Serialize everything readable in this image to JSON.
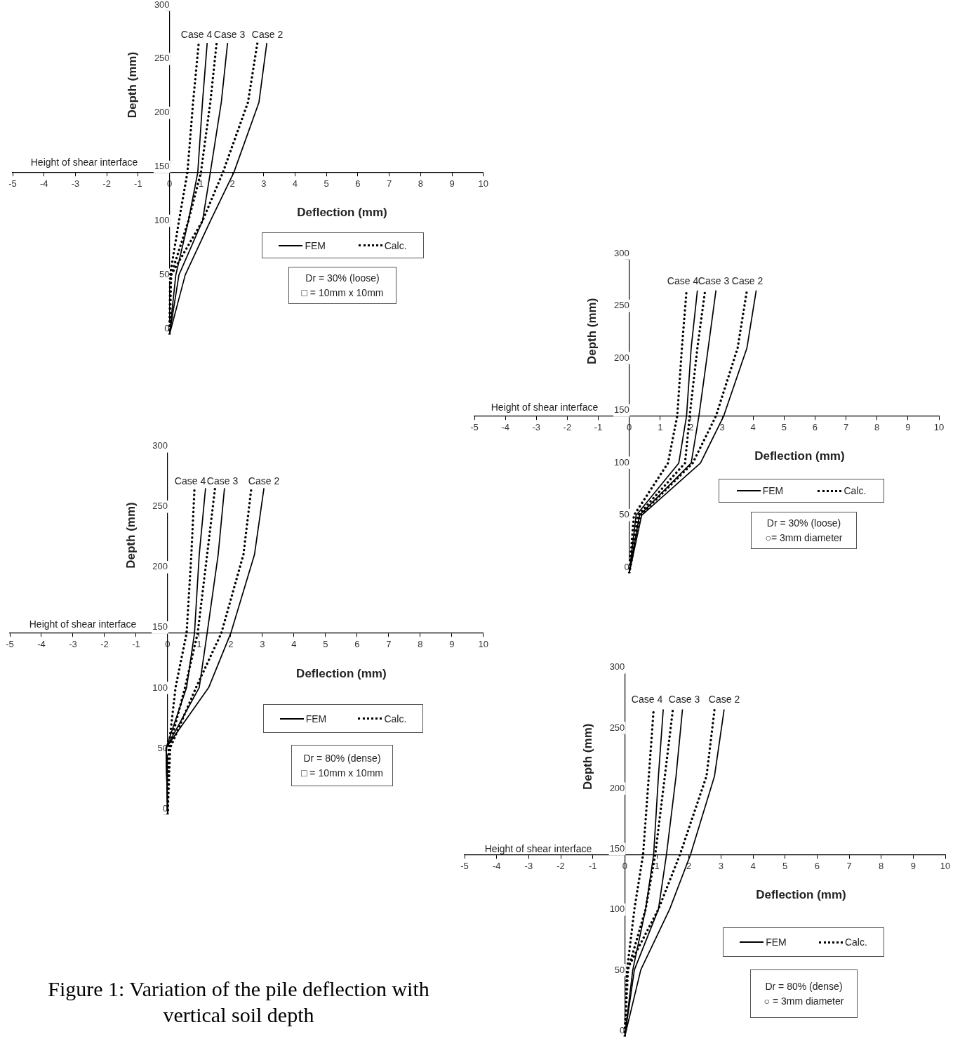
{
  "chart_data": [
    {
      "type": "line",
      "xlabel": "Deflection (mm)",
      "ylabel": "Depth (mm)",
      "xlim": [
        -5,
        10
      ],
      "ylim": [
        0,
        300
      ],
      "xticks": [
        -5,
        -4,
        -3,
        -2,
        -1,
        0,
        1,
        2,
        3,
        4,
        5,
        6,
        7,
        8,
        9,
        10
      ],
      "yticks": [
        0,
        50,
        100,
        150,
        200,
        250,
        300
      ],
      "grid": false,
      "legend": "bottom right",
      "marker": "none",
      "annotations": [
        "Case 4",
        "Case 3",
        "Case 2",
        "Height of shear interface",
        "Dr = 30% (loose)",
        "□ = 10mm x 10mm"
      ],
      "series": [
        {
          "name": "FEM",
          "color": "#000000",
          "line_style": "solid",
          "x": [
            0,
            0.5,
            1.3,
            2.05,
            2.85,
            3.1
          ],
          "values": [
            0,
            55,
            105,
            150,
            215,
            270
          ]
        },
        {
          "color": "#000000",
          "line_style": "solid",
          "x": [
            0,
            0.3,
            1.05,
            1.3,
            1.65,
            1.85
          ],
          "values": [
            0,
            55,
            105,
            150,
            215,
            270
          ]
        },
        {
          "color": "#000000",
          "line_style": "solid",
          "x": [
            0,
            0.2,
            0.6,
            0.9,
            1.05,
            1.2
          ],
          "values": [
            0,
            55,
            105,
            150,
            215,
            270
          ]
        },
        {
          "name": "Calc.",
          "color": "#000000",
          "line_style": "dotted",
          "x": [
            0,
            0.05,
            1.05,
            1.7,
            2.5,
            2.8
          ],
          "values": [
            0,
            55,
            105,
            150,
            215,
            270
          ]
        },
        {
          "color": "#000000",
          "line_style": "dotted",
          "x": [
            0,
            0.05,
            0.6,
            1.0,
            1.3,
            1.5
          ],
          "values": [
            0,
            55,
            105,
            150,
            215,
            270
          ]
        },
        {
          "color": "#000000",
          "line_style": "dotted",
          "x": [
            0,
            0.02,
            0.3,
            0.57,
            0.75,
            0.93
          ],
          "values": [
            0,
            55,
            105,
            150,
            215,
            270
          ]
        }
      ]
    },
    {
      "type": "line",
      "xlabel": "Deflection (mm)",
      "ylabel": "Depth (mm)",
      "xlim": [
        -5,
        10
      ],
      "ylim": [
        0,
        300
      ],
      "xticks": [
        -5,
        -4,
        -3,
        -2,
        -1,
        0,
        1,
        2,
        3,
        4,
        5,
        6,
        7,
        8,
        9,
        10
      ],
      "yticks": [
        0,
        50,
        100,
        150,
        200,
        250,
        300
      ],
      "grid": false,
      "legend": "bottom right",
      "marker": "none",
      "annotations": [
        "Case 4",
        "Case 3",
        "Case 2",
        "Height of shear interface",
        "Dr = 30% (loose)",
        "○= 3mm diameter"
      ],
      "series": [
        {
          "name": "FEM",
          "color": "#000000",
          "line_style": "solid",
          "x": [
            0,
            0.4,
            2.3,
            3.05,
            3.8,
            4.1
          ],
          "values": [
            0,
            55,
            105,
            150,
            215,
            270
          ]
        },
        {
          "color": "#000000",
          "line_style": "solid",
          "x": [
            0,
            0.33,
            2.0,
            2.25,
            2.55,
            2.8
          ],
          "values": [
            0,
            55,
            105,
            150,
            215,
            270
          ]
        },
        {
          "color": "#000000",
          "line_style": "solid",
          "x": [
            0,
            0.22,
            1.6,
            1.85,
            2.0,
            2.2
          ],
          "values": [
            0,
            55,
            105,
            150,
            215,
            270
          ]
        },
        {
          "name": "Calc.",
          "color": "#000000",
          "line_style": "dotted",
          "x": [
            0,
            0.35,
            2.05,
            2.8,
            3.5,
            3.8
          ],
          "values": [
            0,
            55,
            105,
            150,
            215,
            270
          ]
        },
        {
          "color": "#000000",
          "line_style": "dotted",
          "x": [
            0,
            0.28,
            1.8,
            1.95,
            2.2,
            2.45
          ],
          "values": [
            0,
            55,
            105,
            150,
            215,
            270
          ]
        },
        {
          "color": "#000000",
          "line_style": "dotted",
          "x": [
            0,
            0.15,
            1.25,
            1.55,
            1.7,
            1.85
          ],
          "values": [
            0,
            55,
            105,
            150,
            215,
            270
          ]
        }
      ]
    },
    {
      "type": "line",
      "title": "Figure 1: Variation of the pile deflection with vertical soil depth",
      "xlabel": "Deflection (mm)",
      "ylabel": "Depth (mm)",
      "xlim": [
        -5,
        10
      ],
      "ylim": [
        0,
        300
      ],
      "xticks": [
        -5,
        -4,
        -3,
        -2,
        -1,
        0,
        1,
        2,
        3,
        4,
        5,
        6,
        7,
        8,
        9,
        10
      ],
      "yticks": [
        0,
        50,
        100,
        150,
        200,
        250,
        300
      ],
      "grid": false,
      "legend": "bottom right",
      "marker": "none",
      "annotations": [
        "Case 4",
        "Case 3",
        "Case 2",
        "Height of shear interface",
        "Dr = 80% (dense)",
        "□ = 10mm x 10mm"
      ],
      "series": [
        {
          "name": "FEM",
          "color": "#000000",
          "line_style": "solid",
          "x": [
            0,
            -0.05,
            1.3,
            2.0,
            2.75,
            3.05
          ],
          "values": [
            0,
            55,
            105,
            150,
            215,
            270
          ]
        },
        {
          "color": "#000000",
          "line_style": "solid",
          "x": [
            0,
            -0.05,
            1.0,
            1.25,
            1.6,
            1.8
          ],
          "values": [
            0,
            55,
            105,
            150,
            215,
            270
          ]
        },
        {
          "color": "#000000",
          "line_style": "solid",
          "x": [
            0,
            -0.05,
            0.6,
            0.85,
            1.0,
            1.2
          ],
          "values": [
            0,
            55,
            105,
            150,
            215,
            270
          ]
        },
        {
          "name": "Calc.",
          "color": "#000000",
          "line_style": "dotted",
          "x": [
            0,
            0.08,
            0.9,
            1.7,
            2.4,
            2.65
          ],
          "values": [
            0,
            55,
            105,
            150,
            215,
            270
          ]
        },
        {
          "color": "#000000",
          "line_style": "dotted",
          "x": [
            0,
            0.05,
            0.55,
            0.95,
            1.25,
            1.5
          ],
          "values": [
            0,
            55,
            105,
            150,
            215,
            270
          ]
        },
        {
          "color": "#000000",
          "line_style": "dotted",
          "x": [
            0,
            0.03,
            0.25,
            0.6,
            0.75,
            0.85
          ],
          "values": [
            0,
            55,
            105,
            150,
            215,
            270
          ]
        }
      ]
    },
    {
      "type": "line",
      "xlabel": "Deflection (mm)",
      "ylabel": "Depth (mm)",
      "xlim": [
        -5,
        10
      ],
      "ylim": [
        0,
        300
      ],
      "xticks": [
        -5,
        -4,
        -3,
        -2,
        -1,
        0,
        1,
        2,
        3,
        4,
        5,
        6,
        7,
        8,
        9,
        10
      ],
      "yticks": [
        0,
        50,
        100,
        150,
        200,
        250,
        300
      ],
      "grid": false,
      "legend": "bottom right",
      "marker": "none",
      "annotations": [
        "Case 4",
        "Case 3",
        "Case 2",
        "Height of shear interface",
        "Dr = 80% (dense)",
        "○ = 3mm diameter"
      ],
      "series": [
        {
          "name": "FEM",
          "color": "#000000",
          "line_style": "solid",
          "x": [
            0,
            0.5,
            1.4,
            2.05,
            2.8,
            3.1
          ],
          "values": [
            0,
            55,
            105,
            150,
            215,
            270
          ]
        },
        {
          "color": "#000000",
          "line_style": "solid",
          "x": [
            0,
            0.3,
            1.05,
            1.3,
            1.6,
            1.8
          ],
          "values": [
            0,
            55,
            105,
            150,
            215,
            270
          ]
        },
        {
          "color": "#000000",
          "line_style": "solid",
          "x": [
            0,
            0.25,
            0.65,
            0.9,
            1.05,
            1.2
          ],
          "values": [
            0,
            55,
            105,
            150,
            215,
            270
          ]
        },
        {
          "name": "Calc.",
          "color": "#000000",
          "line_style": "dotted",
          "x": [
            0,
            0.07,
            1.05,
            1.72,
            2.55,
            2.8
          ],
          "values": [
            0,
            55,
            105,
            150,
            215,
            270
          ]
        },
        {
          "color": "#000000",
          "line_style": "dotted",
          "x": [
            0,
            0.1,
            0.65,
            0.95,
            1.25,
            1.5
          ],
          "values": [
            0,
            55,
            105,
            150,
            215,
            270
          ]
        },
        {
          "color": "#000000",
          "line_style": "dotted",
          "x": [
            0,
            0.07,
            0.3,
            0.57,
            0.75,
            0.9
          ],
          "values": [
            0,
            55,
            105,
            150,
            215,
            270
          ]
        }
      ]
    }
  ]
}
